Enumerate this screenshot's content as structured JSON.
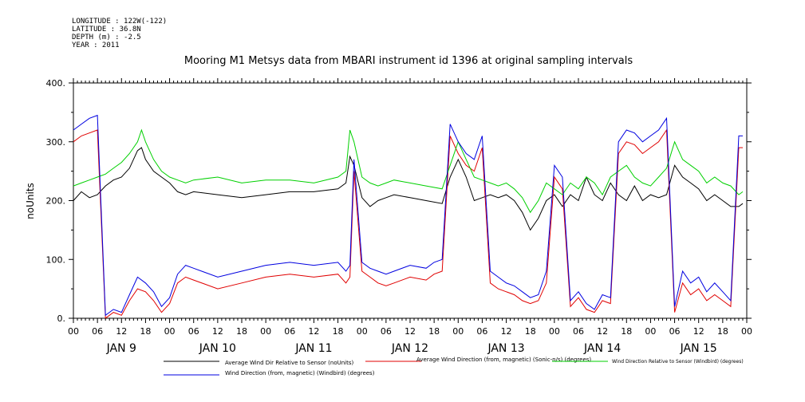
{
  "header": {
    "longitude": "LONGITUDE : 122W(-122)",
    "latitude": "LATITUDE : 36.8N",
    "depth": "DEPTH (m) : -2.5",
    "year": "YEAR : 2011"
  },
  "chart_data": {
    "type": "line",
    "title": "Mooring M1 Metsys data from MBARI instrument id 1396 at original sampling intervals",
    "ylabel": "noUnits",
    "xlabel": "",
    "ylim": [
      0,
      400
    ],
    "yticks": [
      0,
      100,
      200,
      300,
      400
    ],
    "ytick_labels": [
      "0.",
      "100.",
      "200.",
      "300.",
      "400."
    ],
    "xlim_hours": [
      0,
      168
    ],
    "hour_ticks": [
      "00",
      "06",
      "12",
      "18",
      "00",
      "06",
      "12",
      "18",
      "00",
      "06",
      "12",
      "18",
      "00",
      "06",
      "12",
      "18",
      "00",
      "06",
      "12",
      "18",
      "00",
      "06",
      "12",
      "18",
      "00",
      "06",
      "12",
      "18",
      "00"
    ],
    "day_labels": [
      "JAN  9",
      "JAN 10",
      "JAN 11",
      "JAN 12",
      "JAN 13",
      "JAN 14",
      "JAN 15"
    ],
    "grid": false,
    "legend_position": "bottom",
    "colors": {
      "black": "#000000",
      "red": "#e00000",
      "green": "#00d000",
      "blue": "#0000e0"
    },
    "series": [
      {
        "name": "Average Wind Dir Relative to Sensor (noUnits)",
        "color": "#000000",
        "x": [
          0,
          2,
          4,
          6,
          8,
          10,
          12,
          14,
          16,
          17,
          18,
          20,
          22,
          24,
          26,
          28,
          30,
          36,
          42,
          48,
          54,
          60,
          66,
          68,
          69,
          70,
          72,
          74,
          76,
          78,
          80,
          84,
          88,
          92,
          94,
          96,
          98,
          100,
          102,
          104,
          106,
          108,
          110,
          112,
          114,
          116,
          118,
          120,
          122,
          124,
          126,
          128,
          130,
          132,
          134,
          136,
          138,
          140,
          142,
          144,
          146,
          148,
          150,
          152,
          154,
          156,
          158,
          160,
          162,
          164,
          166,
          167
        ],
        "values": [
          200,
          215,
          205,
          210,
          225,
          235,
          240,
          255,
          285,
          290,
          270,
          250,
          240,
          230,
          215,
          210,
          215,
          210,
          205,
          210,
          215,
          215,
          220,
          230,
          275,
          260,
          205,
          190,
          200,
          205,
          210,
          205,
          200,
          195,
          240,
          270,
          240,
          200,
          205,
          210,
          205,
          210,
          200,
          180,
          150,
          170,
          200,
          210,
          190,
          210,
          200,
          240,
          210,
          200,
          230,
          210,
          200,
          225,
          200,
          210,
          205,
          210,
          260,
          240,
          230,
          220,
          200,
          210,
          200,
          190,
          190,
          195
        ]
      },
      {
        "name": "Average Wind Direction (from, magnetic) (Sonic-n/s) (degrees)",
        "color": "#e00000",
        "x": [
          0,
          2,
          4,
          6,
          8,
          10,
          12,
          14,
          16,
          18,
          20,
          22,
          24,
          26,
          28,
          30,
          36,
          42,
          48,
          54,
          60,
          66,
          68,
          69,
          70,
          72,
          74,
          76,
          78,
          80,
          84,
          88,
          90,
          92,
          94,
          96,
          98,
          100,
          102,
          104,
          106,
          108,
          110,
          112,
          114,
          116,
          118,
          120,
          122,
          124,
          126,
          128,
          130,
          132,
          134,
          136,
          138,
          140,
          142,
          144,
          146,
          148,
          150,
          152,
          154,
          156,
          158,
          160,
          162,
          164,
          166,
          167
        ],
        "values": [
          300,
          310,
          315,
          320,
          0,
          10,
          5,
          30,
          50,
          45,
          30,
          10,
          25,
          60,
          70,
          65,
          50,
          60,
          70,
          75,
          70,
          75,
          60,
          70,
          250,
          80,
          70,
          60,
          55,
          60,
          70,
          65,
          75,
          80,
          310,
          280,
          260,
          250,
          290,
          60,
          50,
          45,
          40,
          30,
          25,
          30,
          60,
          240,
          220,
          20,
          35,
          15,
          10,
          30,
          25,
          280,
          300,
          295,
          280,
          290,
          300,
          320,
          10,
          60,
          40,
          50,
          30,
          40,
          30,
          20,
          290,
          290
        ]
      },
      {
        "name": "Wind Direction Relative to Sensor (Windbird) (degrees)",
        "color": "#00d000",
        "x": [
          0,
          2,
          4,
          6,
          8,
          10,
          12,
          14,
          16,
          17,
          18,
          20,
          22,
          24,
          26,
          28,
          30,
          36,
          42,
          48,
          54,
          60,
          66,
          68,
          69,
          70,
          72,
          74,
          76,
          78,
          80,
          84,
          88,
          92,
          94,
          96,
          98,
          100,
          102,
          104,
          106,
          108,
          110,
          112,
          114,
          116,
          118,
          120,
          122,
          124,
          126,
          128,
          130,
          132,
          134,
          136,
          138,
          140,
          142,
          144,
          146,
          148,
          150,
          152,
          154,
          156,
          158,
          160,
          162,
          164,
          166,
          167
        ],
        "values": [
          225,
          230,
          235,
          240,
          245,
          255,
          265,
          280,
          300,
          320,
          300,
          270,
          250,
          240,
          235,
          230,
          235,
          240,
          230,
          235,
          235,
          230,
          240,
          250,
          320,
          300,
          240,
          230,
          225,
          230,
          235,
          230,
          225,
          220,
          260,
          300,
          270,
          240,
          235,
          230,
          225,
          230,
          220,
          205,
          180,
          200,
          230,
          220,
          210,
          230,
          220,
          240,
          230,
          210,
          240,
          250,
          260,
          240,
          230,
          225,
          240,
          255,
          300,
          270,
          260,
          250,
          230,
          240,
          230,
          225,
          210,
          215
        ]
      },
      {
        "name": "Wind Direction (from, magnetic) (Windbird) (degrees)",
        "color": "#0000e0",
        "x": [
          0,
          2,
          4,
          6,
          8,
          10,
          12,
          14,
          16,
          18,
          20,
          22,
          24,
          26,
          28,
          30,
          36,
          42,
          48,
          54,
          60,
          66,
          68,
          69,
          70,
          72,
          74,
          76,
          78,
          80,
          84,
          88,
          90,
          92,
          94,
          96,
          98,
          100,
          102,
          104,
          106,
          108,
          110,
          112,
          114,
          116,
          118,
          120,
          122,
          124,
          126,
          128,
          130,
          132,
          134,
          136,
          138,
          140,
          142,
          144,
          146,
          148,
          150,
          152,
          154,
          156,
          158,
          160,
          162,
          164,
          166,
          167
        ],
        "values": [
          320,
          330,
          340,
          345,
          5,
          15,
          10,
          40,
          70,
          60,
          45,
          20,
          35,
          75,
          90,
          85,
          70,
          80,
          90,
          95,
          90,
          95,
          80,
          90,
          270,
          95,
          85,
          80,
          75,
          80,
          90,
          85,
          95,
          100,
          330,
          300,
          280,
          270,
          310,
          80,
          70,
          60,
          55,
          45,
          35,
          40,
          80,
          260,
          240,
          30,
          45,
          25,
          15,
          40,
          35,
          300,
          320,
          315,
          300,
          310,
          320,
          340,
          20,
          80,
          60,
          70,
          45,
          60,
          45,
          30,
          310,
          310
        ]
      }
    ]
  }
}
